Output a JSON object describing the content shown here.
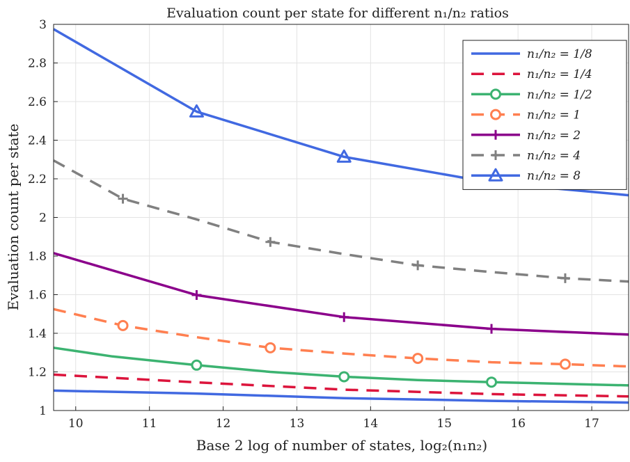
{
  "chart_data": {
    "type": "line",
    "title": "Evaluation count per state for different n₁/n₂ ratios",
    "xlabel": "Base 2 log of number of states, log₂(n₁n₂)",
    "ylabel": "Evaluation count per state",
    "xlim": [
      9.7,
      17.5
    ],
    "ylim": [
      1,
      3
    ],
    "xticks": [
      10,
      11,
      12,
      13,
      14,
      15,
      16,
      17
    ],
    "yticks": [
      1,
      1.2,
      1.4,
      1.6,
      1.8,
      2,
      2.2,
      2.4,
      2.6,
      2.8,
      3
    ],
    "grid": true,
    "legend_position": "top-right",
    "series": [
      {
        "name": "n₁/n₂ = 1/8",
        "color": "#4169E1",
        "dash": "solid",
        "marker": "none",
        "x": [
          9.7,
          11.64,
          13.64,
          15.64,
          17.5
        ],
        "y": [
          1.103,
          1.088,
          1.064,
          1.05,
          1.041
        ],
        "marker_x": []
      },
      {
        "name": "n₁/n₂ = 1/4",
        "color": "#DC143C",
        "dash": "dash",
        "marker": "none",
        "x": [
          9.7,
          11.64,
          13.64,
          15.64,
          17.5
        ],
        "y": [
          1.186,
          1.146,
          1.108,
          1.085,
          1.073
        ],
        "marker_x": []
      },
      {
        "name": "n₁/n₂ = 1/2",
        "color": "#3CB371",
        "dash": "solid",
        "marker": "circle",
        "x": [
          9.7,
          10.5,
          11.64,
          12.64,
          13.64,
          14.64,
          15.64,
          16.64,
          17.5
        ],
        "y": [
          1.325,
          1.28,
          1.235,
          1.2,
          1.175,
          1.158,
          1.147,
          1.138,
          1.13
        ],
        "marker_x": [
          11.64,
          13.64,
          15.64
        ]
      },
      {
        "name": "n₁/n₂ = 1",
        "color": "#FF7F50",
        "dash": "dash",
        "marker": "circle",
        "x": [
          9.7,
          10.64,
          11.64,
          12.64,
          13.64,
          14.64,
          15.64,
          16.64,
          17.5
        ],
        "y": [
          1.525,
          1.44,
          1.38,
          1.325,
          1.295,
          1.27,
          1.25,
          1.24,
          1.228
        ],
        "marker_x": [
          10.64,
          12.64,
          14.64,
          16.64
        ]
      },
      {
        "name": "n₁/n₂ = 2",
        "color": "#8B008B",
        "dash": "solid",
        "marker": "plus",
        "x": [
          9.7,
          11.64,
          13.64,
          15.64,
          17.5
        ],
        "y": [
          1.815,
          1.598,
          1.484,
          1.423,
          1.393
        ],
        "marker_x": [
          11.64,
          13.64,
          15.64
        ]
      },
      {
        "name": "n₁/n₂ = 4",
        "color": "#808080",
        "dash": "dash",
        "marker": "plus",
        "x": [
          9.7,
          10.64,
          11.64,
          12.64,
          13.64,
          14.64,
          15.64,
          16.64,
          17.5
        ],
        "y": [
          2.295,
          2.097,
          1.99,
          1.873,
          1.81,
          1.752,
          1.717,
          1.685,
          1.668
        ],
        "marker_x": [
          10.64,
          12.64,
          14.64,
          16.64
        ]
      },
      {
        "name": "n₁/n₂ = 8",
        "color": "#4169E1",
        "dash": "solid",
        "marker": "triangle",
        "x": [
          9.7,
          11.64,
          13.64,
          15.64,
          17.5
        ],
        "y": [
          2.975,
          2.548,
          2.314,
          2.18,
          2.115
        ],
        "marker_x": [
          11.64,
          13.64,
          15.64
        ]
      }
    ]
  }
}
